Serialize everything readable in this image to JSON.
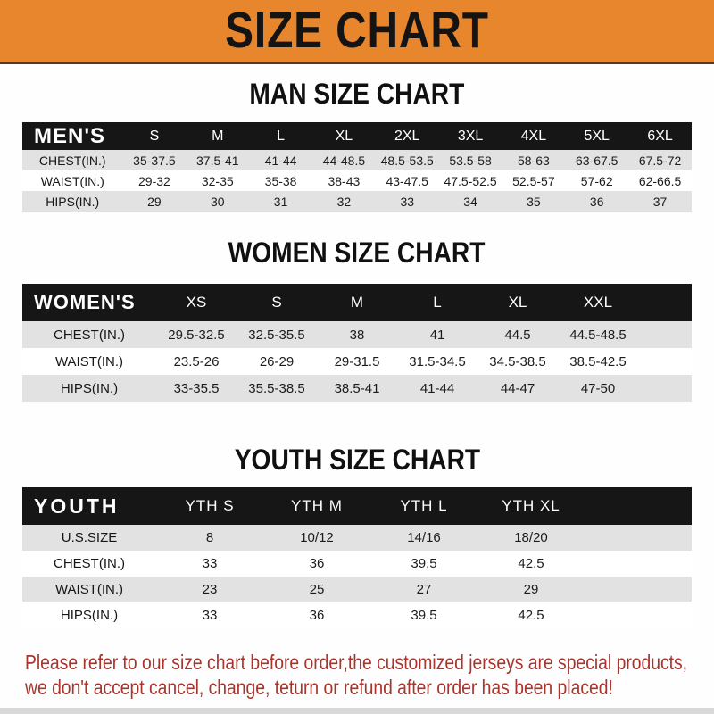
{
  "banner": {
    "title": "SIZE CHART"
  },
  "sections": [
    {
      "title": "MAN SIZE CHART",
      "group_label": "MEN'S",
      "columns": [
        "S",
        "M",
        "L",
        "XL",
        "2XL",
        "3XL",
        "4XL",
        "5XL",
        "6XL"
      ],
      "rows": [
        {
          "label": "CHEST(IN.)",
          "values": [
            "35-37.5",
            "37.5-41",
            "41-44",
            "44-48.5",
            "48.5-53.5",
            "53.5-58",
            "58-63",
            "63-67.5",
            "67.5-72"
          ]
        },
        {
          "label": "WAIST(IN.)",
          "values": [
            "29-32",
            "32-35",
            "35-38",
            "38-43",
            "43-47.5",
            "47.5-52.5",
            "52.5-57",
            "57-62",
            "62-66.5"
          ]
        },
        {
          "label": "HIPS(IN.)",
          "values": [
            "29",
            "30",
            "31",
            "32",
            "33",
            "34",
            "35",
            "36",
            "37"
          ]
        }
      ]
    },
    {
      "title": "WOMEN SIZE CHART",
      "group_label": "WOMEN'S",
      "columns": [
        "XS",
        "S",
        "M",
        "L",
        "XL",
        "XXL"
      ],
      "rows": [
        {
          "label": "CHEST(IN.)",
          "values": [
            "29.5-32.5",
            "32.5-35.5",
            "38",
            "41",
            "44.5",
            "44.5-48.5"
          ]
        },
        {
          "label": "WAIST(IN.)",
          "values": [
            "23.5-26",
            "26-29",
            "29-31.5",
            "31.5-34.5",
            "34.5-38.5",
            "38.5-42.5"
          ]
        },
        {
          "label": "HIPS(IN.)",
          "values": [
            "33-35.5",
            "35.5-38.5",
            "38.5-41",
            "41-44",
            "44-47",
            "47-50"
          ]
        }
      ]
    },
    {
      "title": "YOUTH SIZE CHART",
      "group_label": "YOUTH",
      "columns": [
        "YTH S",
        "YTH M",
        "YTH L",
        "YTH XL"
      ],
      "rows": [
        {
          "label": "U.S.SIZE",
          "values": [
            "8",
            "10/12",
            "14/16",
            "18/20"
          ]
        },
        {
          "label": "CHEST(IN.)",
          "values": [
            "33",
            "36",
            "39.5",
            "42.5"
          ]
        },
        {
          "label": "WAIST(IN.)",
          "values": [
            "23",
            "25",
            "27",
            "29"
          ]
        },
        {
          "label": "HIPS(IN.)",
          "values": [
            "33",
            "36",
            "39.5",
            "42.5"
          ]
        }
      ]
    }
  ],
  "footer": {
    "lines": [
      "Please refer to our size chart before order,the customized jerseys are special products,",
      "we don't accept cancel, change, teturn or refund after order has been placed!"
    ]
  },
  "colors": {
    "banner_bg": "#E8862D",
    "band_bg": "#161616",
    "stripe": "#e2e2e2",
    "notice_text": "#A8342E"
  }
}
